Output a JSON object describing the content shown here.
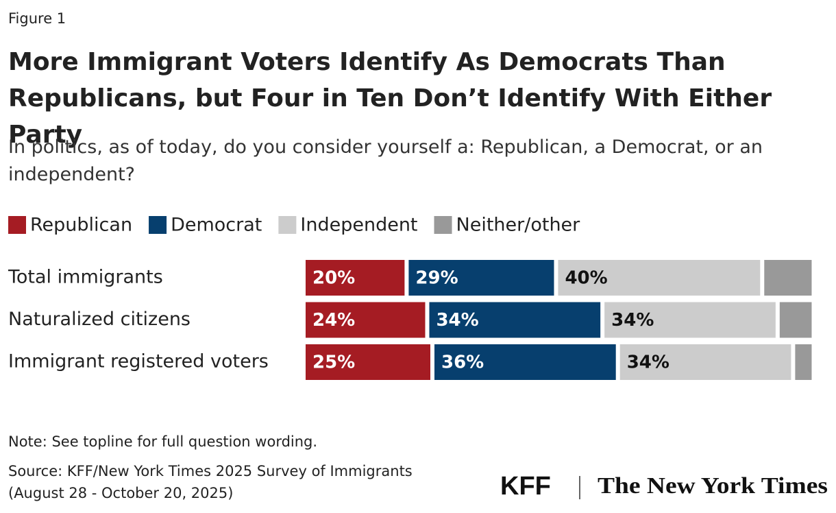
{
  "figure_label": "Figure 1",
  "chart_data": {
    "type": "stacked-bar-horizontal",
    "title": "More Immigrant Voters Identify As Democrats Than Republicans, but Four in Ten Don’t Identify With Either Party",
    "subtitle": "In politics, as of today, do you consider yourself a: Republican, a Democrat, or an independent?",
    "categories": [
      "Total immigrants",
      "Naturalized citizens",
      "Immigrant registered voters"
    ],
    "series": [
      {
        "name": "Republican",
        "color": "#a51c23",
        "values": [
          20,
          24,
          25
        ],
        "value_labels": [
          "20%",
          "24%",
          "25%"
        ]
      },
      {
        "name": "Democrat",
        "color": "#073f6e",
        "values": [
          29,
          34,
          36
        ],
        "value_labels": [
          "29%",
          "34%",
          "36%"
        ]
      },
      {
        "name": "Independent",
        "color": "#cccccc",
        "values": [
          40,
          34,
          34
        ],
        "value_labels": [
          "40%",
          "34%",
          "34%"
        ]
      },
      {
        "name": "Neither/other",
        "color": "#999999",
        "values": [
          10,
          7,
          4
        ],
        "value_labels": [
          null,
          null,
          null
        ]
      }
    ],
    "xlim": [
      0,
      100
    ]
  },
  "footer": {
    "note": "Note: See topline for full question wording.",
    "source": "Source: KFF/New York Times 2025 Survey of Immigrants",
    "source_dates": "(August 28 - October 20, 2025)",
    "logo_left": "KFF",
    "logo_right": "The New York Times"
  }
}
